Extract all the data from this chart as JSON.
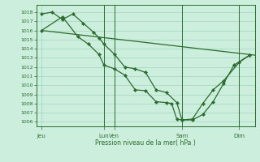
{
  "background_color": "#cceedd",
  "grid_color": "#99ccbb",
  "line_color": "#2d6a2d",
  "marker_color": "#2d6a2d",
  "xlabel_text": "Pression niveau de la mer( hPa )",
  "ylim": [
    1005.5,
    1018.8
  ],
  "yticks": [
    1006,
    1007,
    1008,
    1009,
    1010,
    1011,
    1012,
    1013,
    1014,
    1015,
    1016,
    1017,
    1018
  ],
  "xlim": [
    0,
    21.0
  ],
  "xtick_positions": [
    0.5,
    6.5,
    7.5,
    14.0,
    19.5
  ],
  "xtick_labels": [
    "Jeu",
    "Lun",
    "Ven",
    "Sam",
    "Dim"
  ],
  "vlines": [
    6.5,
    7.5,
    14.0,
    19.5
  ],
  "series1": {
    "x": [
      0.5,
      21.0
    ],
    "y": [
      1016.0,
      1013.3
    ]
  },
  "series2": {
    "x": [
      0.5,
      1.5,
      2.5,
      3.5,
      4.5,
      5.5,
      6.0,
      6.5,
      7.5,
      8.5,
      9.5,
      10.5,
      11.5,
      12.5,
      13.5,
      14.0,
      15.0,
      16.0,
      17.0,
      18.0,
      19.0,
      20.5
    ],
    "y": [
      1017.8,
      1018.0,
      1017.2,
      1017.8,
      1016.8,
      1015.8,
      1015.2,
      1014.5,
      1013.4,
      1012.0,
      1011.8,
      1011.4,
      1009.5,
      1009.2,
      1008.1,
      1006.2,
      1006.2,
      1006.8,
      1008.2,
      1010.2,
      1012.2,
      1013.3
    ]
  },
  "series3": {
    "x": [
      0.5,
      2.5,
      4.0,
      5.0,
      6.0,
      6.5,
      7.5,
      8.5,
      9.5,
      10.5,
      11.5,
      12.5,
      13.0,
      13.5,
      14.0,
      15.0,
      16.0,
      17.0,
      18.0,
      19.5,
      20.5
    ],
    "y": [
      1016.0,
      1017.5,
      1015.3,
      1014.5,
      1013.4,
      1012.2,
      1011.8,
      1011.1,
      1009.5,
      1009.4,
      1008.2,
      1008.1,
      1008.0,
      1006.3,
      1006.2,
      1006.3,
      1008.0,
      1009.5,
      1010.5,
      1012.5,
      1013.3
    ]
  }
}
